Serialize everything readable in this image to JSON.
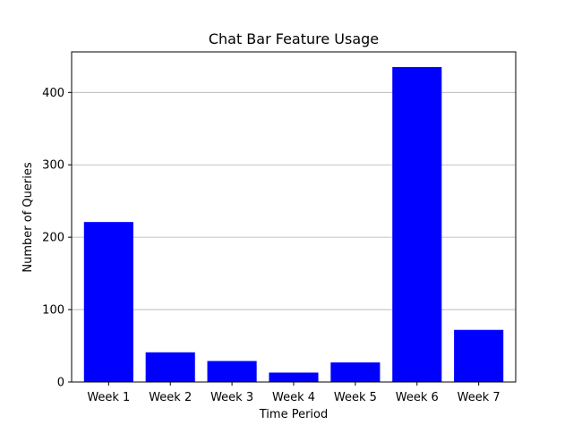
{
  "chart_data": {
    "type": "bar",
    "title": "Chat Bar Feature Usage",
    "xlabel": "Time Period",
    "ylabel": "Number of Queries",
    "categories": [
      "Week 1",
      "Week 2",
      "Week 3",
      "Week 4",
      "Week 5",
      "Week 6",
      "Week 7"
    ],
    "values": [
      221,
      41,
      29,
      13,
      27,
      435,
      72
    ],
    "ylim": [
      0,
      456
    ],
    "yticks": [
      0,
      100,
      200,
      300,
      400
    ],
    "grid": "y-axis only",
    "bar_color": "#0000ff"
  }
}
